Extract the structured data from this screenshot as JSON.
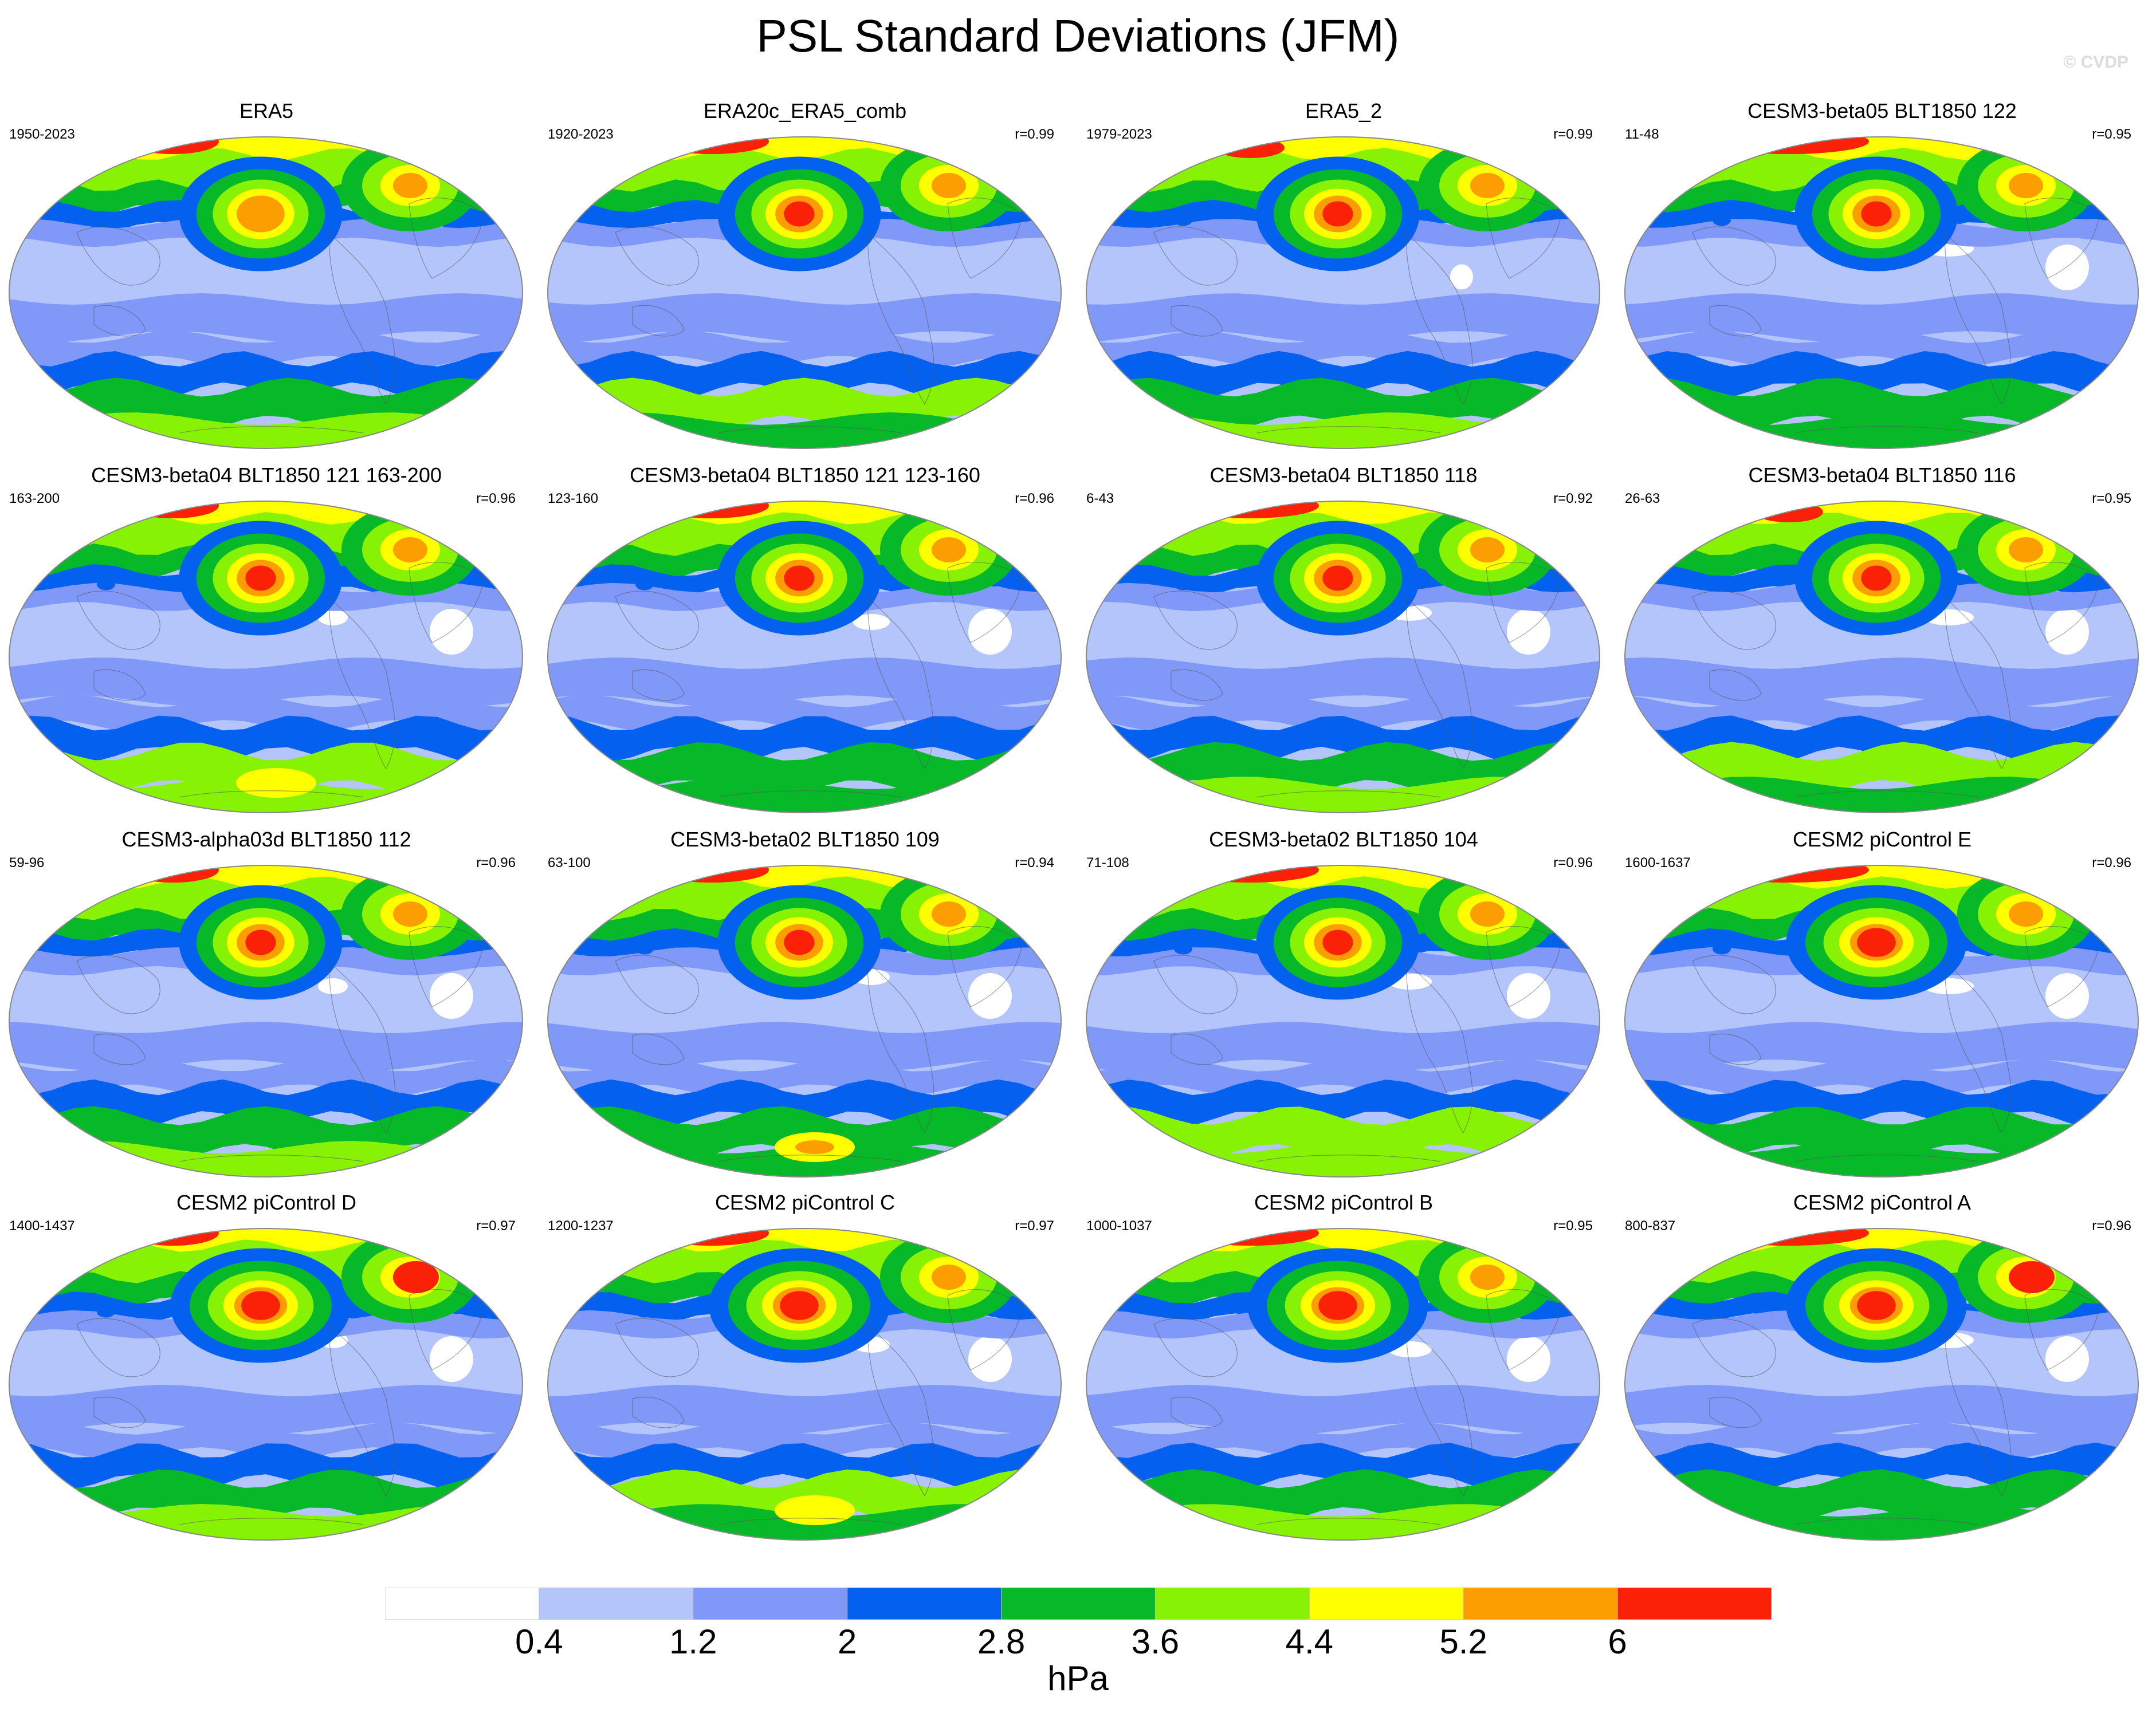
{
  "title": "PSL Standard Deviations (JFM)",
  "watermark": "© CVDP",
  "units": "hPa",
  "colorbar": {
    "colors": [
      "#ffffff",
      "#b4c5fb",
      "#8098f8",
      "#0461ef",
      "#07b829",
      "#87f204",
      "#ffff00",
      "#fc9d01",
      "#fa2106"
    ],
    "labels": [
      "0.4",
      "1.2",
      "2",
      "2.8",
      "3.6",
      "4.4",
      "5.2",
      "6"
    ]
  },
  "panels": [
    {
      "title": "ERA5",
      "range": "1950-2023",
      "corr": ""
    },
    {
      "title": "ERA20c_ERA5_comb",
      "range": "1920-2023",
      "corr": "r=0.99"
    },
    {
      "title": "ERA5_2",
      "range": "1979-2023",
      "corr": "r=0.99"
    },
    {
      "title": "CESM3-beta05 BLT1850 122",
      "range": "11-48",
      "corr": "r=0.95"
    },
    {
      "title": "CESM3-beta04 BLT1850 121 163-200",
      "range": "163-200",
      "corr": "r=0.96"
    },
    {
      "title": "CESM3-beta04 BLT1850 121 123-160",
      "range": "123-160",
      "corr": "r=0.96"
    },
    {
      "title": "CESM3-beta04 BLT1850 118",
      "range": "6-43",
      "corr": "r=0.92"
    },
    {
      "title": "CESM3-beta04 BLT1850 116",
      "range": "26-63",
      "corr": "r=0.95"
    },
    {
      "title": "CESM3-alpha03d BLT1850 112",
      "range": "59-96",
      "corr": "r=0.96"
    },
    {
      "title": "CESM3-beta02 BLT1850 109",
      "range": "63-100",
      "corr": "r=0.94"
    },
    {
      "title": "CESM3-beta02 BLT1850 104",
      "range": "71-108",
      "corr": "r=0.96"
    },
    {
      "title": "CESM2 piControl E",
      "range": "1600-1637",
      "corr": "r=0.96"
    },
    {
      "title": "CESM2 piControl D",
      "range": "1400-1437",
      "corr": "r=0.97"
    },
    {
      "title": "CESM2 piControl C",
      "range": "1200-1237",
      "corr": "r=0.97"
    },
    {
      "title": "CESM2 piControl B",
      "range": "1000-1037",
      "corr": "r=0.95"
    },
    {
      "title": "CESM2 piControl A",
      "range": "800-837",
      "corr": "r=0.96"
    }
  ]
}
